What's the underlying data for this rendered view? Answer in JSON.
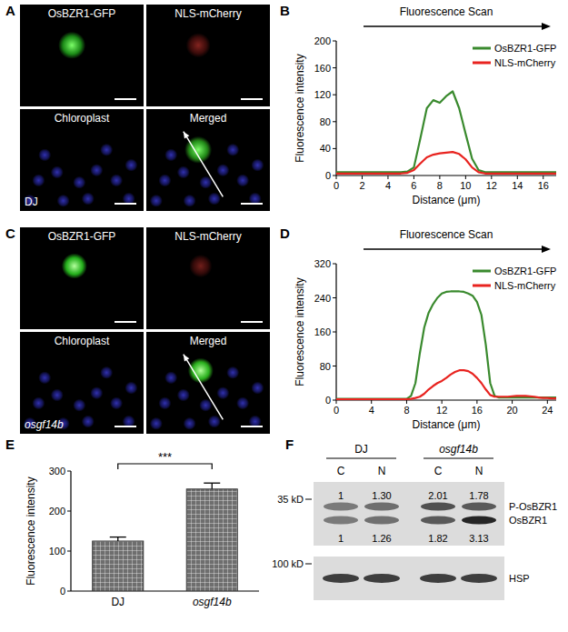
{
  "panel_labels": [
    "A",
    "B",
    "C",
    "D",
    "E",
    "F"
  ],
  "micrographs": [
    {
      "condition": "DJ",
      "channels": [
        "OsBZR1-GFP",
        "NLS-mCherry",
        "Chloroplast",
        "Merged"
      ]
    },
    {
      "condition": "osgf14b",
      "channels": [
        "OsBZR1-GFP",
        "NLS-mCherry",
        "Chloroplast",
        "Merged"
      ]
    }
  ],
  "chart_data": [
    {
      "type": "line",
      "annotation": "Fluorescence Scan",
      "x_label": "Distance (μm)",
      "y_label": "Fluorescence intensity",
      "x": [
        0,
        0.5,
        1,
        1.5,
        2,
        2.5,
        3,
        3.5,
        4,
        4.5,
        5,
        5.5,
        6,
        6.5,
        7,
        7.5,
        8,
        8.5,
        9,
        9.5,
        10,
        10.5,
        11,
        11.5,
        12,
        12.5,
        13,
        13.5,
        14,
        14.5,
        15,
        15.5,
        16,
        16.5,
        17
      ],
      "series": [
        {
          "name": "OsBZR1-GFP",
          "color": "#3a8a2e",
          "values": [
            5,
            5,
            5,
            5,
            5,
            5,
            5,
            5,
            5,
            5,
            5,
            6,
            12,
            55,
            100,
            112,
            108,
            118,
            125,
            100,
            62,
            25,
            8,
            5,
            5,
            5,
            5,
            5,
            5,
            5,
            5,
            5,
            5,
            5,
            5
          ]
        },
        {
          "name": "NLS-mCherry",
          "color": "#e8231f",
          "values": [
            3,
            3,
            3,
            3,
            3,
            3,
            3,
            3,
            3,
            3,
            3,
            4,
            8,
            18,
            27,
            31,
            33,
            34,
            35,
            32,
            24,
            12,
            5,
            3,
            3,
            3,
            3,
            3,
            3,
            3,
            3,
            3,
            3,
            3,
            3
          ]
        }
      ],
      "xlim": [
        0,
        17
      ],
      "xticks": [
        0,
        2,
        4,
        6,
        8,
        10,
        12,
        14,
        16
      ],
      "ylim": [
        0,
        200
      ],
      "yticks": [
        0,
        40,
        80,
        120,
        160,
        200
      ],
      "legend": "upper-right"
    },
    {
      "type": "line",
      "annotation": "Fluorescence Scan",
      "x_label": "Distance (μm)",
      "y_label": "Fluorescence intensity",
      "x": [
        0,
        0.5,
        1,
        1.5,
        2,
        2.5,
        3,
        3.5,
        4,
        4.5,
        5,
        5.5,
        6,
        6.5,
        7,
        7.5,
        8,
        8.5,
        9,
        9.5,
        10,
        10.5,
        11,
        11.5,
        12,
        12.5,
        13,
        13.5,
        14,
        14.5,
        15,
        15.5,
        16,
        16.5,
        17,
        17.5,
        18,
        18.5,
        19,
        19.5,
        20,
        20.5,
        21,
        21.5,
        22,
        22.5,
        23,
        23.5,
        24,
        24.5,
        25
      ],
      "series": [
        {
          "name": "OsBZR1-GFP",
          "color": "#3a8a2e",
          "values": [
            3,
            3,
            3,
            3,
            3,
            3,
            3,
            3,
            3,
            3,
            3,
            3,
            3,
            3,
            3,
            3,
            3,
            10,
            40,
            110,
            170,
            205,
            225,
            240,
            250,
            254,
            255,
            255,
            255,
            254,
            250,
            245,
            230,
            200,
            130,
            40,
            10,
            6,
            6,
            6,
            6,
            6,
            6,
            6,
            6,
            6,
            6,
            6,
            6,
            6,
            6
          ]
        },
        {
          "name": "NLS-mCherry",
          "color": "#e8231f",
          "values": [
            2,
            2,
            2,
            2,
            2,
            2,
            2,
            2,
            2,
            2,
            2,
            2,
            2,
            2,
            2,
            2,
            2,
            3,
            5,
            8,
            15,
            25,
            33,
            40,
            45,
            52,
            60,
            66,
            70,
            70,
            68,
            62,
            52,
            40,
            25,
            12,
            8,
            8,
            8,
            8,
            9,
            10,
            10,
            10,
            9,
            8,
            6,
            5,
            5,
            4,
            4
          ]
        }
      ],
      "xlim": [
        0,
        25
      ],
      "xticks": [
        0,
        4,
        8,
        12,
        16,
        20,
        24
      ],
      "ylim": [
        0,
        320
      ],
      "yticks": [
        0,
        80,
        160,
        240,
        320
      ],
      "legend": "upper-right"
    },
    {
      "type": "bar",
      "y_label": "Fluorescence intensity",
      "annotation": "***",
      "categories": [
        "DJ",
        "osgf14b"
      ],
      "values": [
        125,
        255
      ],
      "errors": [
        10,
        15
      ],
      "color": "#6e6e6e",
      "ylim": [
        0,
        300
      ],
      "yticks": [
        0,
        100,
        200,
        300
      ]
    }
  ],
  "western_blot": {
    "groups": [
      "DJ",
      "osgf14b"
    ],
    "lanes": [
      "C",
      "N",
      "C",
      "N"
    ],
    "markers": [
      "35 kD",
      "100 kD"
    ],
    "rows": [
      {
        "name": "P-OsBZR1",
        "values": [
          1,
          1.3,
          2.01,
          1.78
        ],
        "value_labels": [
          "1",
          "1.30",
          "2.01",
          "1.78"
        ]
      },
      {
        "name": "OsBZR1",
        "values": [
          1,
          1.26,
          1.82,
          3.13
        ],
        "value_labels": [
          "1",
          "1.26",
          "1.82",
          "3.13"
        ]
      },
      {
        "name": "HSP"
      }
    ]
  }
}
